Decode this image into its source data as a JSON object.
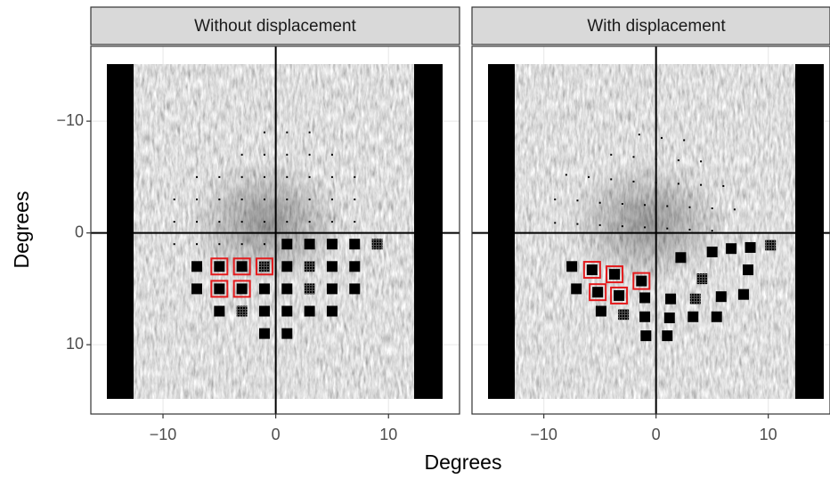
{
  "x_label": "Degrees",
  "y_label": "Degrees",
  "chart_data": [
    {
      "type": "scatter",
      "title": "Without displacement",
      "xlim": [
        -16.4,
        16.3
      ],
      "ylim": [
        -16.7,
        16.2
      ],
      "y_reversed": true,
      "xticks": [
        {
          "value": -10,
          "label": "−10"
        },
        0,
        10
      ],
      "yticks": [
        {
          "value": -10,
          "label": "−10"
        },
        0,
        10
      ],
      "hline": 0,
      "vline": 0,
      "dots": {
        "x": [
          -1,
          1,
          3,
          -3,
          -1,
          1,
          3,
          5,
          -7,
          -5,
          -3,
          -1,
          1,
          3,
          5,
          7,
          -9,
          -7,
          -5,
          -3,
          -1,
          1,
          3,
          5,
          7,
          -9,
          -7,
          -5,
          -3,
          -1,
          1,
          3,
          5,
          7,
          -9,
          -7,
          -5,
          -3,
          -1
        ],
        "y": [
          -9,
          -9,
          -9,
          -7,
          -7,
          -7,
          -7,
          -7,
          -5,
          -5,
          -5,
          -5,
          -5,
          -5,
          -5,
          -5,
          -3,
          -3,
          -3,
          -3,
          -3,
          -3,
          -3,
          -3,
          -3,
          -1,
          -1,
          -1,
          -1,
          -1,
          -1,
          -1,
          -1,
          -1,
          1,
          1,
          1,
          1,
          1
        ]
      },
      "squares": {
        "x": [
          1,
          3,
          5,
          7,
          9,
          -7,
          -5,
          -3,
          -1,
          1,
          3,
          5,
          7,
          -7,
          -5,
          -3,
          -1,
          1,
          3,
          5,
          7,
          -5,
          -3,
          -1,
          1,
          3,
          5,
          -1,
          1
        ],
        "y": [
          1,
          1,
          1,
          1,
          1,
          3,
          3,
          3,
          3,
          3,
          3,
          3,
          3,
          5,
          5,
          5,
          5,
          5,
          5,
          5,
          5,
          7,
          7,
          7,
          7,
          7,
          7,
          9,
          9
        ],
        "highlight": [
          false,
          false,
          false,
          false,
          false,
          false,
          true,
          true,
          true,
          false,
          false,
          false,
          false,
          false,
          true,
          true,
          false,
          false,
          false,
          false,
          false,
          false,
          false,
          false,
          false,
          false,
          false,
          false,
          false
        ],
        "hatched": [
          false,
          false,
          false,
          false,
          true,
          false,
          false,
          false,
          true,
          false,
          true,
          false,
          false,
          false,
          false,
          false,
          false,
          false,
          true,
          false,
          false,
          false,
          true,
          false,
          false,
          false,
          false,
          false,
          false
        ]
      }
    },
    {
      "type": "scatter",
      "title": "With displacement",
      "xlim": [
        -16.4,
        15.5
      ],
      "ylim": [
        -16.7,
        16.2
      ],
      "y_reversed": true,
      "xticks": [
        {
          "value": -10,
          "label": "−10"
        },
        0,
        10
      ],
      "yticks": [
        -10,
        0,
        10
      ],
      "hline": 0,
      "vline": 0,
      "dots": {
        "x": [
          -1.5,
          0.5,
          2.5,
          -4,
          -2,
          0,
          2,
          4,
          -8,
          -6,
          -4,
          -2,
          0,
          2,
          4,
          6,
          -9,
          -7,
          -5,
          -3,
          -1,
          1,
          3,
          5,
          7,
          -9,
          -7,
          -5,
          -3,
          -1,
          1,
          3,
          5
        ],
        "y": [
          -8.8,
          -8.5,
          -8.3,
          -7,
          -6.8,
          -6.6,
          -6.5,
          -6.4,
          -5.2,
          -5,
          -4.8,
          -4.6,
          -4.5,
          -4.4,
          -4.3,
          -4.2,
          -3,
          -2.9,
          -2.7,
          -2.6,
          -2.5,
          -2.4,
          -2.3,
          -2.2,
          -2.1,
          -0.9,
          -0.8,
          -0.7,
          -0.6,
          -0.5,
          -0.4,
          -0.3,
          -0.2
        ]
      },
      "squares": {
        "x": [
          -7.5,
          -5.7,
          -3.7,
          -5.2,
          -3.3,
          -1.3,
          -7.1,
          -4.9,
          -2.9,
          -1.0,
          -1.0,
          -0.9,
          1.0,
          1.2,
          1.3,
          2.2,
          3.5,
          3.3,
          4.1,
          5.4,
          5.8,
          5.0,
          6.7,
          7.8,
          8.2,
          8.4,
          10.2
        ],
        "y": [
          3.0,
          3.3,
          3.7,
          5.3,
          5.6,
          4.3,
          5.0,
          7.0,
          7.3,
          5.8,
          7.5,
          9.2,
          9.2,
          7.6,
          5.9,
          2.2,
          5.9,
          7.5,
          4.1,
          7.5,
          5.7,
          1.7,
          1.4,
          5.5,
          3.3,
          1.3,
          1.1
        ],
        "highlight": [
          false,
          true,
          true,
          true,
          true,
          true,
          false,
          false,
          false,
          false,
          false,
          false,
          false,
          false,
          false,
          false,
          false,
          false,
          false,
          false,
          false,
          false,
          false,
          false,
          false,
          false,
          false
        ],
        "hatched": [
          false,
          false,
          false,
          false,
          false,
          false,
          false,
          false,
          true,
          false,
          false,
          false,
          false,
          false,
          false,
          false,
          true,
          false,
          true,
          false,
          false,
          false,
          false,
          false,
          false,
          false,
          true
        ]
      }
    }
  ]
}
